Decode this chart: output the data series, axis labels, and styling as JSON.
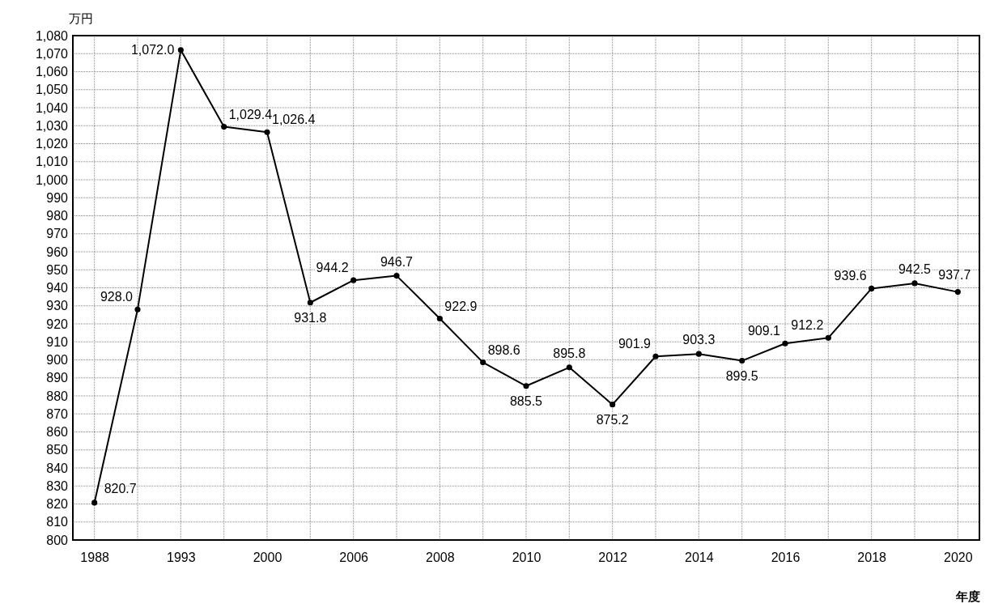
{
  "chart_data": {
    "type": "line",
    "ylabel": "万円",
    "xlabel": "年度",
    "categories": [
      "1988",
      null,
      "1993",
      null,
      "2000",
      null,
      "2006",
      null,
      "2008",
      null,
      "2010",
      null,
      "2012",
      null,
      "2014",
      null,
      "2016",
      null,
      "2018",
      null,
      "2020"
    ],
    "series": [
      {
        "color": "#000000",
        "values": [
          820.7,
          928.0,
          1072.0,
          1029.4,
          1026.4,
          931.8,
          944.2,
          946.7,
          922.9,
          898.6,
          885.5,
          895.8,
          875.2,
          901.9,
          903.3,
          899.5,
          909.1,
          912.2,
          939.6,
          942.5,
          937.7
        ],
        "value_labels": [
          "820.7",
          "928.0",
          "1,072.0",
          "1,029.4",
          "1,026.4",
          "931.8",
          "944.2",
          "946.7",
          "922.9",
          "898.6",
          "885.5",
          "895.8",
          "875.2",
          "901.9",
          "903.3",
          "899.5",
          "909.1",
          "912.2",
          "939.6",
          "942.5",
          "937.7"
        ]
      }
    ],
    "ylim": [
      800,
      1080
    ],
    "yticks": [
      800,
      810,
      820,
      830,
      840,
      850,
      860,
      870,
      880,
      890,
      900,
      910,
      920,
      930,
      940,
      950,
      960,
      970,
      980,
      990,
      {
        "value": 1000,
        "label": "1,000"
      },
      {
        "value": 1010,
        "label": "1,010"
      },
      {
        "value": 1020,
        "label": "1,020"
      },
      {
        "value": 1030,
        "label": "1,030"
      },
      {
        "value": 1040,
        "label": "1,040"
      },
      {
        "value": 1050,
        "label": "1,050"
      },
      {
        "value": 1060,
        "label": "1,060"
      },
      {
        "value": 1070,
        "label": "1,070"
      },
      {
        "value": 1080,
        "label": "1,080"
      }
    ],
    "grid": true,
    "marker": "circle",
    "line_style": "solid"
  }
}
